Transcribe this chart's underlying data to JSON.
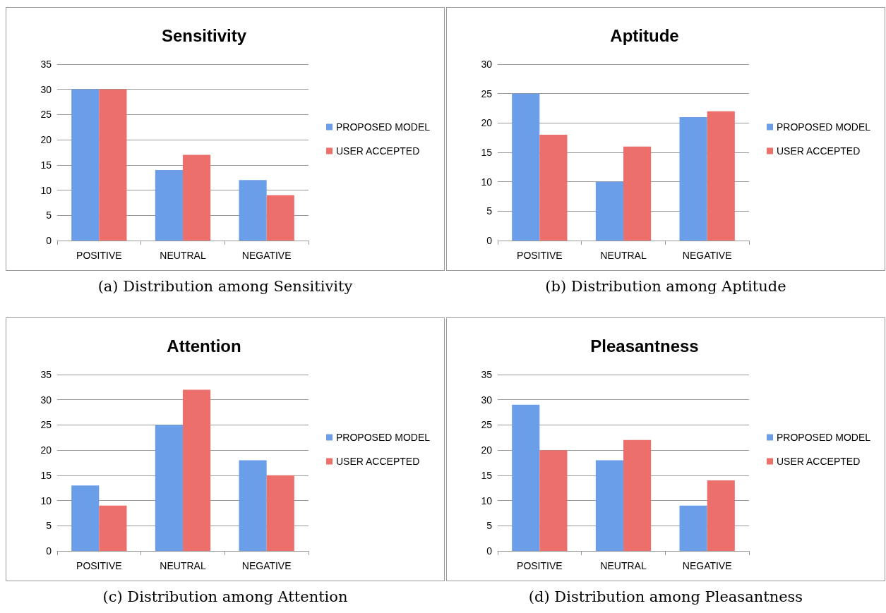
{
  "chart_data": [
    {
      "type": "bar",
      "title": "Sensitivity",
      "categories": [
        "POSITIVE",
        "NEUTRAL",
        "NEGATIVE"
      ],
      "series": [
        {
          "name": "PROPOSED MODEL",
          "color": "#6a9ee8",
          "values": [
            30,
            14,
            12
          ]
        },
        {
          "name": "USER ACCEPTED",
          "color": "#ec6f6b",
          "values": [
            30,
            17,
            9
          ]
        }
      ],
      "ylim": [
        0,
        35
      ],
      "yticks": [
        0,
        5,
        10,
        15,
        20,
        25,
        30,
        35
      ],
      "grid": "y",
      "legend": "right",
      "annotations": [
        "(a) Distribution among Sensitivity"
      ]
    },
    {
      "type": "bar",
      "title": "Aptitude",
      "categories": [
        "POSITIVE",
        "NEUTRAL",
        "NEGATIVE"
      ],
      "series": [
        {
          "name": "PROPOSED MODEL",
          "color": "#6a9ee8",
          "values": [
            25,
            10,
            21
          ]
        },
        {
          "name": "USER ACCEPTED",
          "color": "#ec6f6b",
          "values": [
            18,
            16,
            22
          ]
        }
      ],
      "ylim": [
        0,
        30
      ],
      "yticks": [
        0,
        5,
        10,
        15,
        20,
        25,
        30
      ],
      "grid": "y",
      "legend": "right",
      "annotations": [
        "(b) Distribution among Aptitude"
      ]
    },
    {
      "type": "bar",
      "title": "Attention",
      "categories": [
        "POSITIVE",
        "NEUTRAL",
        "NEGATIVE"
      ],
      "series": [
        {
          "name": "PROPOSED MODEL",
          "color": "#6a9ee8",
          "values": [
            13,
            25,
            18
          ]
        },
        {
          "name": "USER ACCEPTED",
          "color": "#ec6f6b",
          "values": [
            9,
            32,
            15
          ]
        }
      ],
      "ylim": [
        0,
        35
      ],
      "yticks": [
        0,
        5,
        10,
        15,
        20,
        25,
        30,
        35
      ],
      "grid": "y",
      "legend": "right",
      "annotations": [
        "(c) Distribution among Attention"
      ]
    },
    {
      "type": "bar",
      "title": "Pleasantness",
      "categories": [
        "POSITIVE",
        "NEUTRAL",
        "NEGATIVE"
      ],
      "series": [
        {
          "name": "PROPOSED MODEL",
          "color": "#6a9ee8",
          "values": [
            29,
            18,
            9
          ]
        },
        {
          "name": "USER ACCEPTED",
          "color": "#ec6f6b",
          "values": [
            20,
            22,
            14
          ]
        }
      ],
      "ylim": [
        0,
        35
      ],
      "yticks": [
        0,
        5,
        10,
        15,
        20,
        25,
        30,
        35
      ],
      "grid": "y",
      "legend": "right",
      "annotations": [
        "(d) Distribution among Pleasantness"
      ]
    }
  ]
}
